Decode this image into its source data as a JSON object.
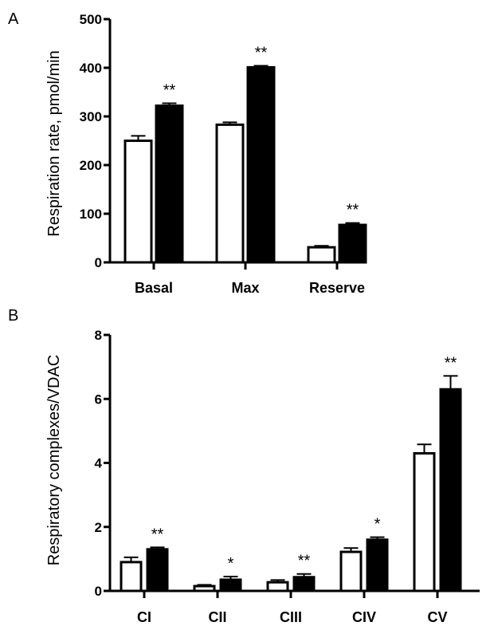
{
  "chart_data": [
    {
      "type": "bar",
      "panel": "A",
      "ylabel": "Respiration rate, pmol/min",
      "ylim": [
        0,
        500
      ],
      "yticks": [
        0,
        100,
        200,
        300,
        400,
        500
      ],
      "categories": [
        "Basal",
        "Max",
        "Reserve"
      ],
      "series": [
        {
          "fill": "open",
          "values": [
            250,
            283,
            31
          ],
          "errors": [
            10,
            5,
            3
          ]
        },
        {
          "fill": "filled",
          "values": [
            322,
            401,
            77
          ],
          "errors": [
            5,
            3,
            4
          ]
        }
      ],
      "significance": [
        "**",
        "**",
        "**"
      ],
      "colors": {
        "open": "#ffffff",
        "filled": "#000000",
        "stroke": "#000000"
      }
    },
    {
      "type": "bar",
      "panel": "B",
      "ylabel": "Respiratory complexes/VDAC",
      "ylim": [
        0,
        8
      ],
      "yticks": [
        0,
        2,
        4,
        6,
        8
      ],
      "categories": [
        "CI",
        "CII",
        "CIII",
        "CIV",
        "CV"
      ],
      "series": [
        {
          "fill": "open",
          "values": [
            0.9,
            0.15,
            0.27,
            1.22,
            4.3
          ],
          "errors": [
            0.15,
            0.04,
            0.07,
            0.12,
            0.28
          ]
        },
        {
          "fill": "filled",
          "values": [
            1.3,
            0.35,
            0.43,
            1.6,
            6.3
          ],
          "errors": [
            0.06,
            0.1,
            0.1,
            0.08,
            0.42
          ]
        }
      ],
      "significance": [
        "**",
        "*",
        "**",
        "*",
        "**"
      ],
      "colors": {
        "open": "#ffffff",
        "filled": "#000000",
        "stroke": "#000000"
      }
    }
  ]
}
